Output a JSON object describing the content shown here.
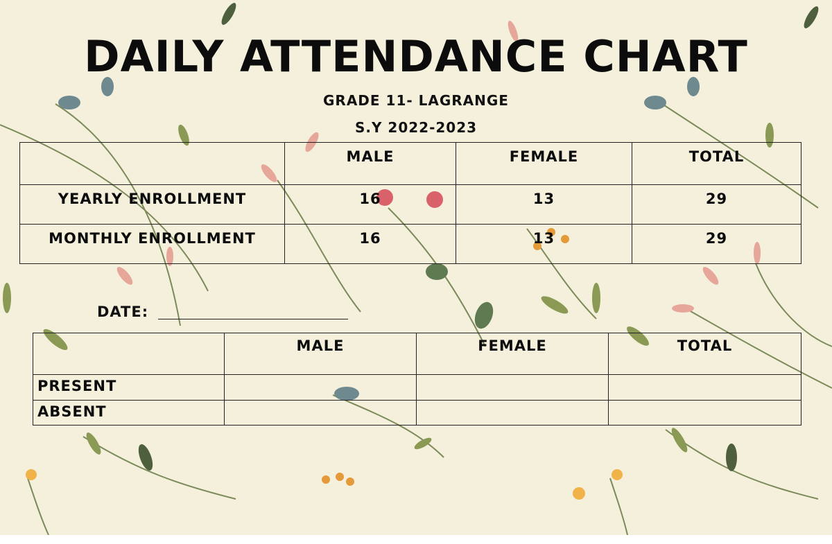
{
  "title": "DAILY ATTENDANCE CHART",
  "subtitle_lines": [
    "GRADE 11- LAGRANGE",
    "S.Y 2022-2023"
  ],
  "enrollment_table": {
    "columns": [
      "MALE",
      "FEMALE",
      "TOTAL"
    ],
    "rows": [
      {
        "label": "YEARLY ENROLLMENT",
        "values": [
          16,
          13,
          29
        ]
      },
      {
        "label": "MONTHLY ENROLLMENT",
        "values": [
          16,
          13,
          29
        ]
      }
    ]
  },
  "date_label": "DATE:",
  "attendance_table": {
    "columns": [
      "MALE",
      "FEMALE",
      "TOTAL"
    ],
    "rows": [
      "PRESENT",
      "ABSENT"
    ]
  }
}
